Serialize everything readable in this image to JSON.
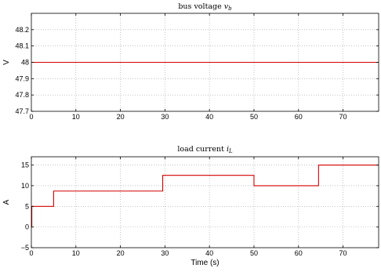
{
  "chart_data": [
    {
      "type": "line",
      "title": "bus voltage v_b",
      "title_main": "bus voltage ",
      "title_italic": "v",
      "title_sub": "b",
      "xlabel": "",
      "ylabel": "V",
      "xlim": [
        0,
        78
      ],
      "ylim": [
        47.7,
        48.3
      ],
      "xticks": [
        0,
        10,
        20,
        30,
        40,
        50,
        60,
        70
      ],
      "xtick_labels": [
        "0",
        "10",
        "20",
        "30",
        "40",
        "50",
        "60",
        "70"
      ],
      "yticks": [
        47.7,
        47.8,
        47.9,
        48,
        48.1,
        48.2
      ],
      "ytick_labels": [
        "47.7",
        "47.8",
        "47.9",
        "48",
        "48.1",
        "48.2"
      ],
      "grid": true,
      "series": [
        {
          "color": "#d40000",
          "x": [
            0,
            78
          ],
          "y": [
            48,
            48
          ],
          "step": false
        }
      ]
    },
    {
      "type": "line",
      "title": "load current i_L",
      "title_main": "load current ",
      "title_italic": "i",
      "title_sub": "L",
      "xlabel": "Time (s)",
      "ylabel": "A",
      "xlim": [
        0,
        78
      ],
      "ylim": [
        -5,
        17
      ],
      "xticks": [
        0,
        10,
        20,
        30,
        40,
        50,
        60,
        70
      ],
      "xtick_labels": [
        "0",
        "10",
        "20",
        "30",
        "40",
        "50",
        "60",
        "70"
      ],
      "yticks": [
        -5,
        0,
        5,
        10,
        15
      ],
      "ytick_labels": [
        "−5",
        "0",
        "5",
        "10",
        "15"
      ],
      "grid": true,
      "series": [
        {
          "color": "#d40000",
          "step": true,
          "x": [
            0,
            0.1,
            5,
            29.5,
            50,
            64.5,
            78
          ],
          "y": [
            0,
            5,
            8.7,
            12.5,
            10,
            15,
            15
          ]
        }
      ]
    }
  ]
}
